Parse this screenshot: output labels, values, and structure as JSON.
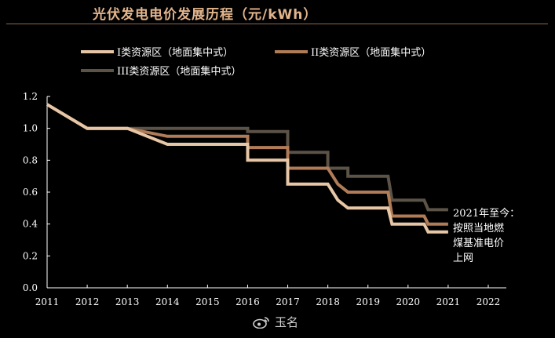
{
  "title": "光伏发电电价发展历程（元/kWh）",
  "watermark": "玉名",
  "colors": {
    "zone1": "#e6c6a6",
    "zone2": "#b07c58",
    "zone3": "#5b5347",
    "axis": "#ffffff",
    "text": "#ffffff",
    "title": "#e2b48c"
  },
  "chart_data": {
    "type": "line",
    "title": "光伏发电电价发展历程（元/kWh）",
    "xlabel": "",
    "ylabel": "",
    "xlim": [
      2011,
      2022
    ],
    "ylim": [
      0,
      1.2
    ],
    "x_ticks": [
      "2011",
      "2012",
      "2013",
      "2014",
      "2015",
      "2016",
      "2017",
      "2018",
      "2019",
      "2020",
      "2021",
      "2022"
    ],
    "y_ticks": [
      "0.0",
      "0.2",
      "0.4",
      "0.6",
      "0.8",
      "1.0",
      "1.2"
    ],
    "legend": "top",
    "annotation": [
      "2021年至今：",
      "按照当地燃",
      "煤基准电价",
      "上网"
    ],
    "series": [
      {
        "name": "I类资源区（地面集中式）",
        "color": "#e6c6a6",
        "points": [
          [
            2011,
            1.15
          ],
          [
            2012,
            1.0
          ],
          [
            2013,
            1.0
          ],
          [
            2014,
            0.9
          ],
          [
            2016,
            0.9
          ],
          [
            2016,
            0.8
          ],
          [
            2017,
            0.8
          ],
          [
            2017,
            0.65
          ],
          [
            2018,
            0.65
          ],
          [
            2018.25,
            0.55
          ],
          [
            2018.5,
            0.5
          ],
          [
            2019.5,
            0.5
          ],
          [
            2019.6,
            0.4
          ],
          [
            2020.4,
            0.4
          ],
          [
            2020.5,
            0.35
          ],
          [
            2021,
            0.35
          ]
        ]
      },
      {
        "name": "II类资源区（地面集中式）",
        "color": "#b07c58",
        "points": [
          [
            2011,
            1.15
          ],
          [
            2012,
            1.0
          ],
          [
            2013,
            1.0
          ],
          [
            2014,
            0.95
          ],
          [
            2016,
            0.95
          ],
          [
            2016,
            0.88
          ],
          [
            2017,
            0.88
          ],
          [
            2017,
            0.75
          ],
          [
            2018,
            0.75
          ],
          [
            2018.25,
            0.65
          ],
          [
            2018.5,
            0.6
          ],
          [
            2019.5,
            0.6
          ],
          [
            2019.6,
            0.45
          ],
          [
            2020.4,
            0.45
          ],
          [
            2020.5,
            0.4
          ],
          [
            2021,
            0.4
          ]
        ]
      },
      {
        "name": "III类资源区（地面集中式）",
        "color": "#5b5347",
        "points": [
          [
            2011,
            1.15
          ],
          [
            2012,
            1.0
          ],
          [
            2016,
            1.0
          ],
          [
            2016,
            0.98
          ],
          [
            2017,
            0.98
          ],
          [
            2017,
            0.85
          ],
          [
            2018,
            0.85
          ],
          [
            2018,
            0.75
          ],
          [
            2018.5,
            0.75
          ],
          [
            2018.5,
            0.7
          ],
          [
            2019.5,
            0.7
          ],
          [
            2019.6,
            0.55
          ],
          [
            2020.4,
            0.55
          ],
          [
            2020.5,
            0.49
          ],
          [
            2021,
            0.49
          ]
        ]
      }
    ]
  }
}
